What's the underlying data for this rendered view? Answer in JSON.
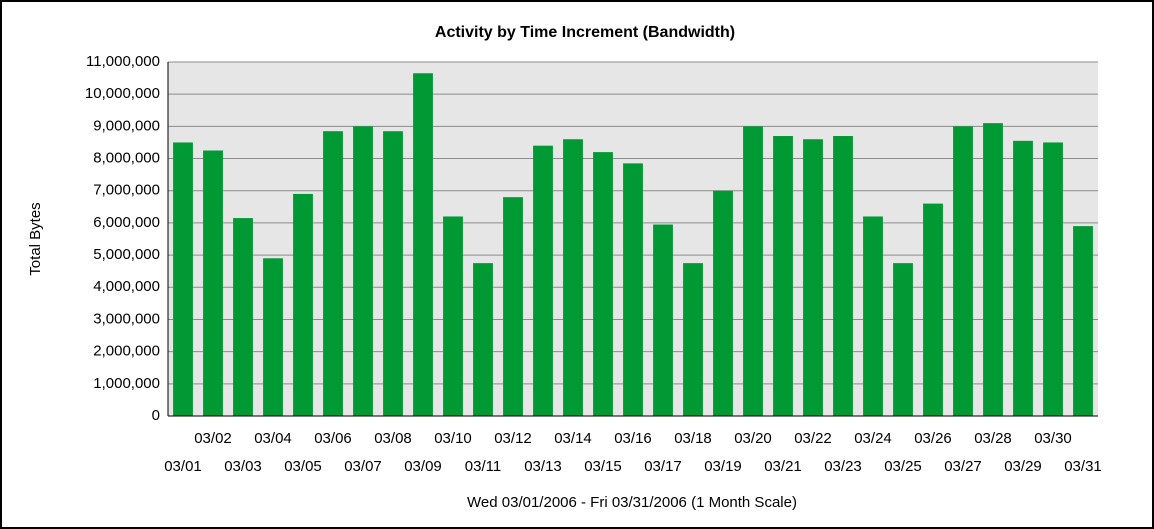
{
  "chart_data": {
    "type": "bar",
    "title": "Activity by Time Increment (Bandwidth)",
    "x_label": "Wed 03/01/2006 - Fri 03/31/2006 (1 Month Scale)",
    "y_label": "Total Bytes",
    "categories": [
      "03/01",
      "03/02",
      "03/03",
      "03/04",
      "03/05",
      "03/06",
      "03/07",
      "03/08",
      "03/09",
      "03/10",
      "03/11",
      "03/12",
      "03/13",
      "03/14",
      "03/15",
      "03/16",
      "03/17",
      "03/18",
      "03/19",
      "03/20",
      "03/21",
      "03/22",
      "03/23",
      "03/24",
      "03/25",
      "03/26",
      "03/27",
      "03/28",
      "03/29",
      "03/30",
      "03/31"
    ],
    "values": [
      8500000,
      8250000,
      6150000,
      4900000,
      6900000,
      8850000,
      9000000,
      8850000,
      10650000,
      6200000,
      4750000,
      6800000,
      8400000,
      8600000,
      8200000,
      7850000,
      5950000,
      4750000,
      7000000,
      9000000,
      8700000,
      8600000,
      8700000,
      6200000,
      4750000,
      6600000,
      9000000,
      9100000,
      8550000,
      8500000,
      5900000
    ],
    "color": "#009933",
    "ylim": [
      0,
      11000000
    ],
    "yticks": [
      0,
      {
        "value": 1000000,
        "label": "1,000,000"
      },
      {
        "value": 2000000,
        "label": "2,000,000"
      },
      {
        "value": 3000000,
        "label": "3,000,000"
      },
      {
        "value": 4000000,
        "label": "4,000,000"
      },
      {
        "value": 5000000,
        "label": "5,000,000"
      },
      {
        "value": 6000000,
        "label": "6,000,000"
      },
      {
        "value": 7000000,
        "label": "7,000,000"
      },
      {
        "value": 8000000,
        "label": "8,000,000"
      },
      {
        "value": 9000000,
        "label": "9,000,000"
      },
      {
        "value": 10000000,
        "label": "10,000,000"
      },
      {
        "value": 11000000,
        "label": "11,000,000"
      }
    ],
    "grid": true
  }
}
